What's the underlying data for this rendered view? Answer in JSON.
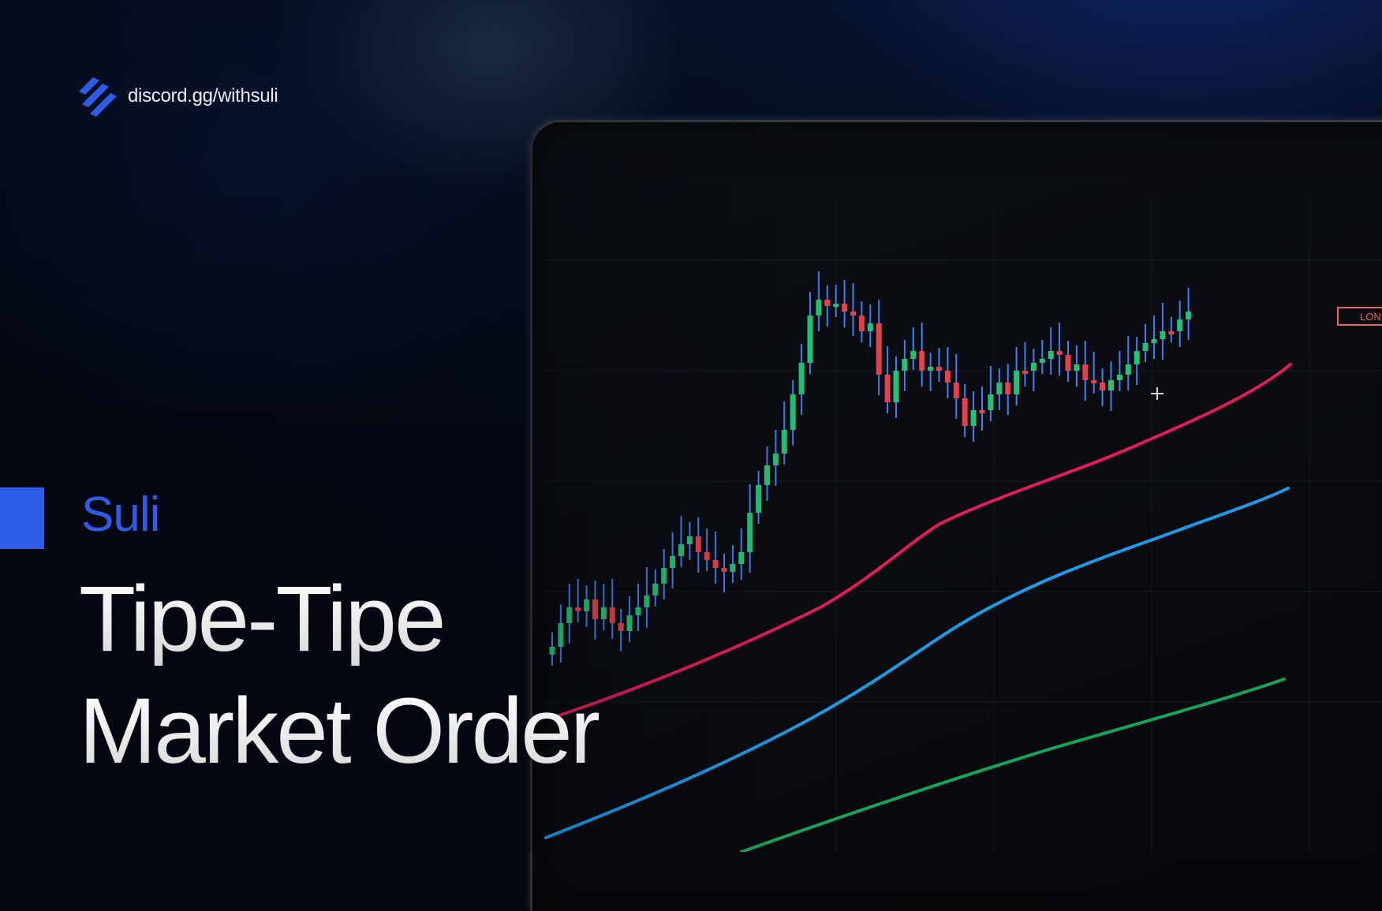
{
  "brand": {
    "icon": "suli-logo-icon",
    "url": "discord.gg/withsuli"
  },
  "hero": {
    "kicker": "Suli",
    "title_line_1": "Tipe-Tipe",
    "title_line_2": "Market Order"
  },
  "monitor": {
    "position_tag": "LON"
  },
  "colors": {
    "accent": "#2f5ce6",
    "candle_up": "#22c27a",
    "candle_down": "#e6404f",
    "wick": "#3b82f6",
    "ma_red": "#e11d58",
    "ma_blue": "#1e9be6",
    "ma_green": "#18a35a"
  }
}
